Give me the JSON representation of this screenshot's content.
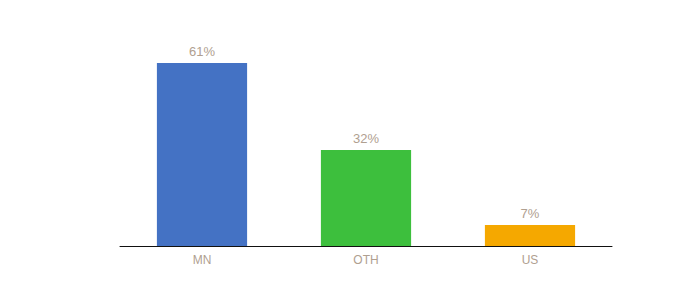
{
  "chart_data": {
    "type": "bar",
    "categories": [
      "MN",
      "OTH",
      "US"
    ],
    "values": [
      61,
      32,
      7
    ],
    "value_labels": [
      "61%",
      "32%",
      "7%"
    ],
    "colors": [
      "#4472c4",
      "#3dbf3d",
      "#f5a800"
    ],
    "ylim": [
      0,
      70
    ],
    "data_labels": true,
    "tick_labels": "x",
    "grid": false
  }
}
